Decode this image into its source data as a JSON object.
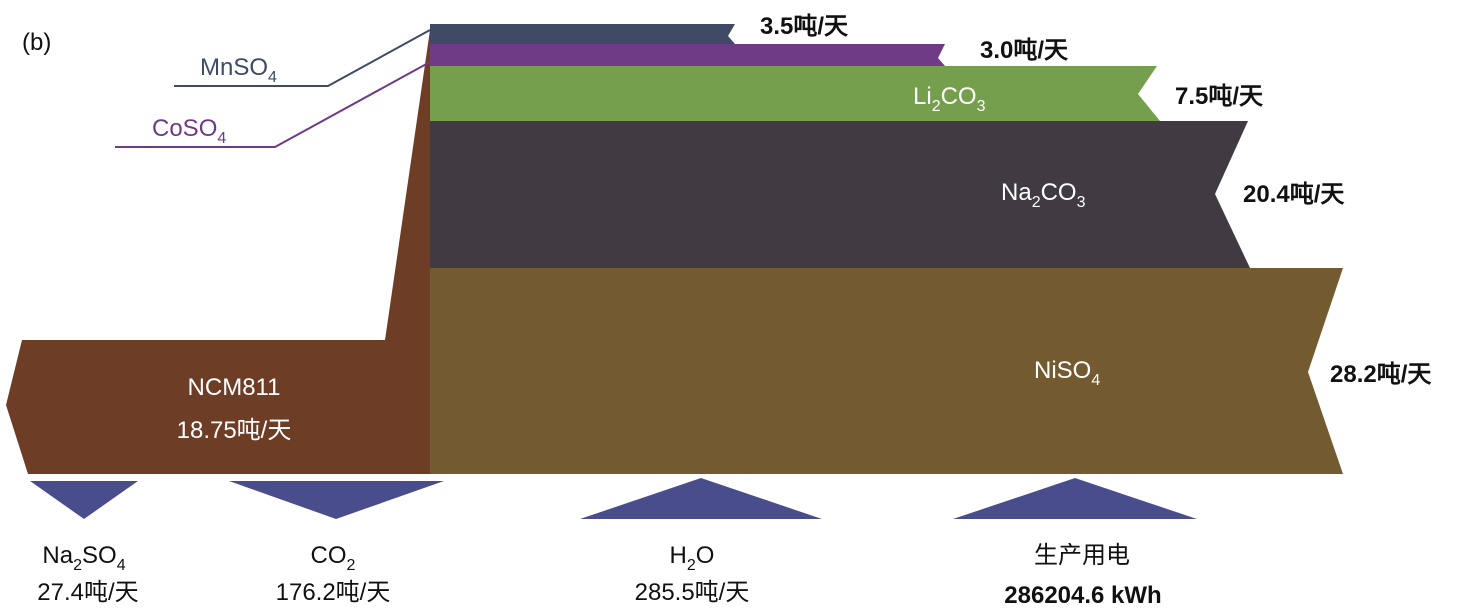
{
  "panel_label": "(b)",
  "colors": {
    "mn": "#3f4a66",
    "co": "#6f3a86",
    "li": "#769f4d",
    "na": "#403a42",
    "ni": "#735a30",
    "ncm": "#6e3d26",
    "byproduct": "#4a4d8c",
    "text_dark": "#111111",
    "text_light": "#ffffff"
  },
  "inputs": {
    "mnso4": {
      "base": "MnSO",
      "sub": "4"
    },
    "coso4": {
      "base": "CoSO",
      "sub": "4"
    }
  },
  "flows": {
    "mn_rate": "3.5吨/天",
    "co_rate": "3.0吨/天",
    "li": {
      "a": "Li",
      "a_sub": "2",
      "b": "CO",
      "b_sub": "3",
      "rate": "7.5吨/天"
    },
    "na": {
      "a": "Na",
      "a_sub": "2",
      "b": "CO",
      "b_sub": "3",
      "rate": "20.4吨/天"
    },
    "ni": {
      "a": "NiSO",
      "a_sub": "4",
      "rate": "28.2吨/天"
    }
  },
  "product": {
    "name": "NCM811",
    "rate": "18.75吨/天"
  },
  "bottom": {
    "na2so4": {
      "a": "Na",
      "a_sub": "2",
      "b": "SO",
      "b_sub": "4",
      "rate": "27.4吨/天"
    },
    "co2": {
      "a": "CO",
      "a_sub": "2",
      "rate": "176.2吨/天"
    },
    "h2o": {
      "a": "H",
      "a_sub": "2",
      "b": "O",
      "rate": "285.5吨/天"
    },
    "power": {
      "name": "生产用电",
      "rate": "286204.6 kWh"
    }
  }
}
